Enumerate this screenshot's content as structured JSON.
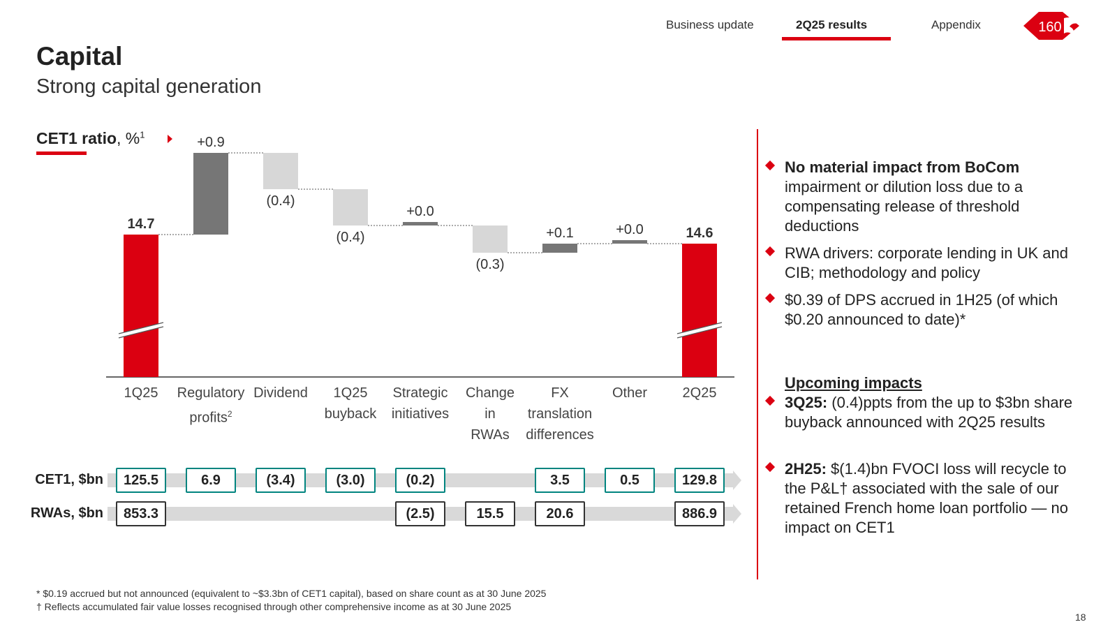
{
  "nav": {
    "items": [
      "Business update",
      "2Q25 results",
      "Appendix"
    ],
    "active": "2Q25 results",
    "logo_text": "160"
  },
  "page": {
    "title": "Capital",
    "subtitle": "Strong capital generation",
    "number": "18"
  },
  "chart_data": {
    "type": "waterfall",
    "title": "CET1 ratio",
    "title_suffix": ", %",
    "title_sup": "1",
    "categories": [
      "1Q25",
      "Regulatory profits",
      "Dividend",
      "1Q25 buyback",
      "Strategic initiatives",
      "Change in RWAs",
      "FX translation differences",
      "Other",
      "2Q25"
    ],
    "category_lines": [
      [
        "1Q25"
      ],
      [
        "Regulatory",
        "profits"
      ],
      [
        "Dividend"
      ],
      [
        "1Q25",
        "buyback"
      ],
      [
        "Strategic",
        "initiatives"
      ],
      [
        "Change",
        "in",
        "RWAs"
      ],
      [
        "FX",
        "translation",
        "differences"
      ],
      [
        "Other"
      ],
      [
        "2Q25"
      ]
    ],
    "category_sups": [
      "",
      "2",
      "",
      "",
      "",
      "",
      "",
      "",
      ""
    ],
    "values": [
      14.7,
      0.9,
      -0.4,
      -0.4,
      0.0,
      -0.3,
      0.1,
      0.0,
      14.6
    ],
    "bar_kinds": [
      "total",
      "increase",
      "decrease",
      "decrease",
      "increase",
      "decrease",
      "increase",
      "increase",
      "total"
    ],
    "data_labels": [
      "14.7",
      "+0.9",
      "(0.4)",
      "(0.4)",
      "+0.0",
      "(0.3)",
      "+0.1",
      "+0.0",
      "14.6"
    ],
    "axis_break": true,
    "colors": {
      "total": "#db0011",
      "increase": "#767676",
      "decrease": "#d7d7d7"
    },
    "rows": [
      {
        "label": "CET1, $bn",
        "values": [
          "125.5",
          "6.9",
          "(3.4)",
          "(3.0)",
          "(0.2)",
          "",
          "3.5",
          "0.5",
          "129.8"
        ]
      },
      {
        "label": "RWAs, $bn",
        "values": [
          "853.3",
          "",
          "",
          "",
          "(2.5)",
          "15.5",
          "20.6",
          "",
          "886.9"
        ]
      }
    ]
  },
  "bullets": [
    {
      "bold": "No material impact from BoCom",
      "text": " impairment or dilution loss due to a compensating release of threshold deductions"
    },
    {
      "bold": "",
      "text": "RWA drivers: corporate lending in UK and CIB; methodology and policy"
    },
    {
      "bold": "",
      "text": "$0.39 of DPS accrued in 1H25 (of which $0.20 announced to date)*"
    }
  ],
  "upcoming": {
    "heading": "Upcoming impacts",
    "items": [
      {
        "bold": "3Q25:",
        "text": " (0.4)ppts from the up to $3bn share buyback announced with 2Q25 results"
      },
      {
        "bold": "2H25:",
        "text": " $(1.4)bn FVOCI loss will recycle to the P&L† associated with the sale of our retained French home loan portfolio — no impact on CET1"
      }
    ]
  },
  "footnotes": [
    "* $0.19 accrued but not announced (equivalent to ~$3.3bn of CET1 capital), based on share count as at 30 June 2025",
    "† Reflects accumulated fair value losses recognised through other comprehensive income as at 30 June 2025"
  ],
  "colors": {
    "accent": "#db0011",
    "teal": "#00847f"
  }
}
